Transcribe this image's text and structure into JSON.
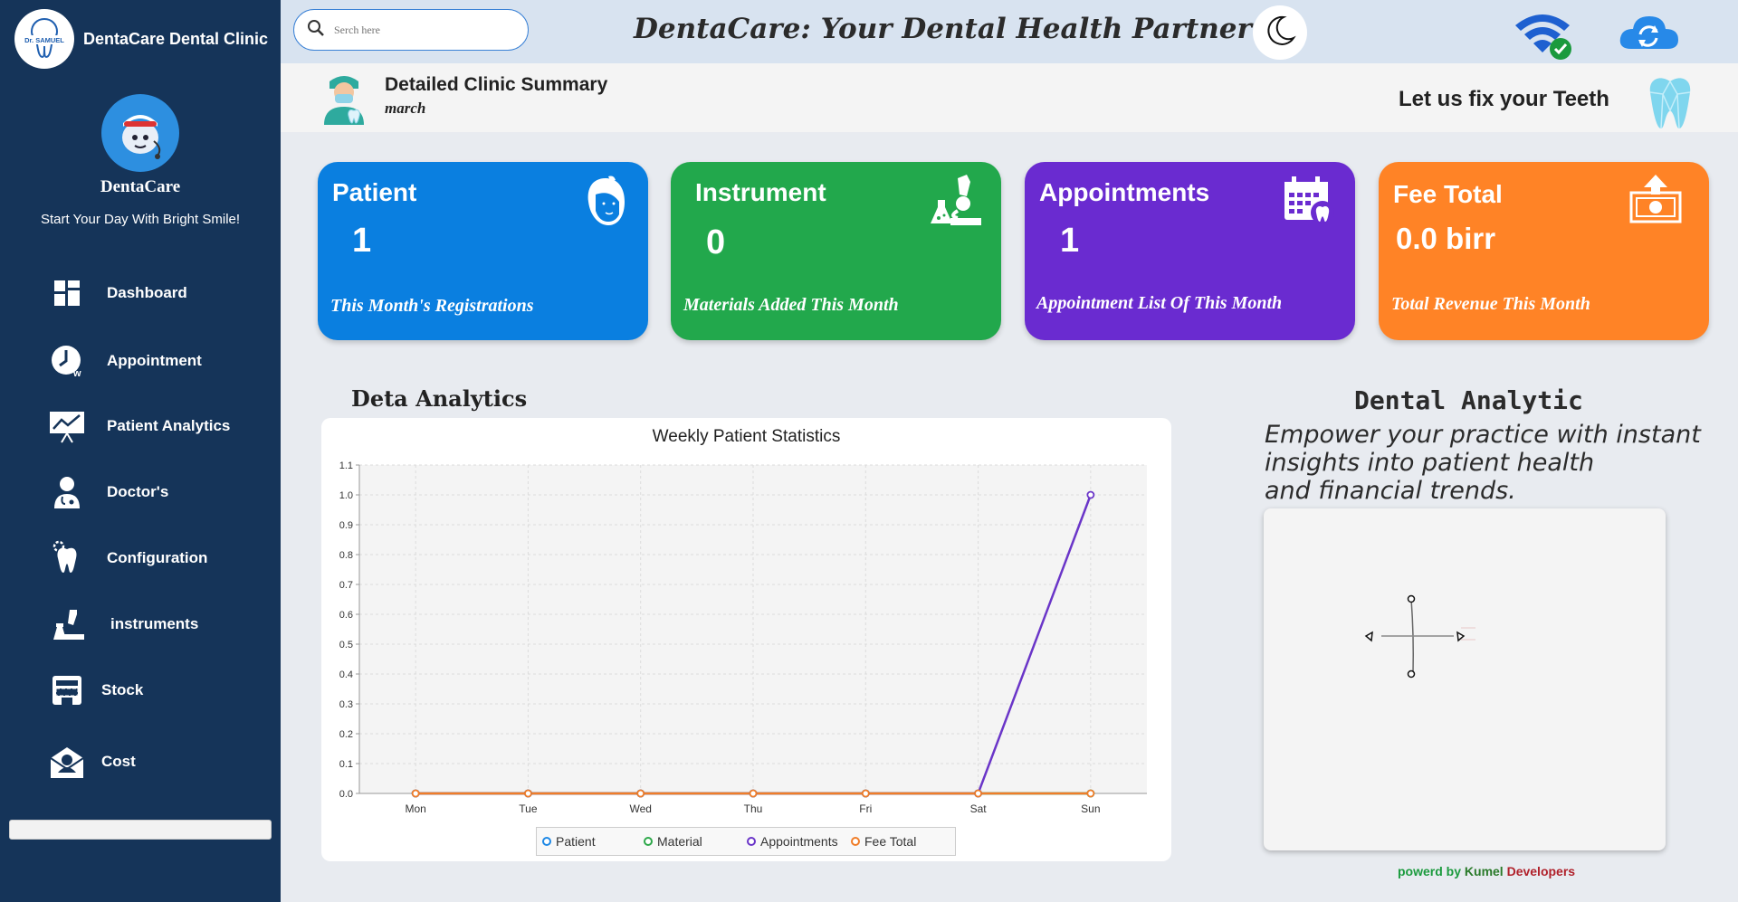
{
  "brand": {
    "title": "DentaCare Dental Clinic",
    "logo_text": "Dr. SAMUEL"
  },
  "sidebar": {
    "profile_name": "DentaCare",
    "tagline": "Start Your Day With Bright Smile!",
    "items": [
      {
        "label": "Dashboard",
        "icon": "dashboard-icon"
      },
      {
        "label": "Appointment",
        "icon": "clock-icon"
      },
      {
        "label": "Patient Analytics",
        "icon": "chart-board-icon"
      },
      {
        "label": "Doctor's",
        "icon": "doctor-icon"
      },
      {
        "label": "Configuration",
        "icon": "tooth-gear-icon"
      },
      {
        "label": "instruments",
        "icon": "microscope-icon"
      },
      {
        "label": "Stock",
        "icon": "store-icon"
      },
      {
        "label": "Cost",
        "icon": "envelope-person-icon"
      }
    ]
  },
  "topbar": {
    "search_placeholder": "Serch here",
    "heading": "DentaCare: Your Dental Health Partner"
  },
  "summary": {
    "title": "Detailed Clinic  Summary",
    "month": "march",
    "slogan": "Let us fix your Teeth"
  },
  "cards": [
    {
      "title": "Patient",
      "value": "1",
      "subtitle": "This Month's Registrations",
      "color": "#0a7fe0"
    },
    {
      "title": "Instrument",
      "value": "0",
      "subtitle": "Materials Added This Month",
      "color": "#22a84c"
    },
    {
      "title": "Appointments",
      "value": "1",
      "subtitle": "Appointment List Of This Month",
      "color": "#6a2bd0"
    },
    {
      "title": "Fee Total",
      "value": "0.0 birr",
      "subtitle": "Total Revenue This Month",
      "color": "#ff8326"
    }
  ],
  "analytics": {
    "heading": "Deta Analytics",
    "dental_title": "Dental Analytic",
    "dental_desc_lines": [
      "Empower your practice with instant",
      "insights into patient health",
      "and financial trends."
    ],
    "credit_1": "powerd by ",
    "credit_2": "Kumel",
    "credit_3": " Developers"
  },
  "chart_data": {
    "type": "line",
    "title": "Weekly Patient Statistics",
    "categories": [
      "Mon",
      "Tue",
      "Wed",
      "Thu",
      "Fri",
      "Sat",
      "Sun"
    ],
    "ylim": [
      0,
      1.1
    ],
    "yticks": [
      "0.0",
      "0.1",
      "0.2",
      "0.3",
      "0.4",
      "0.5",
      "0.6",
      "0.7",
      "0.8",
      "0.9",
      "1.0",
      "1.1"
    ],
    "grid": true,
    "legend_position": "bottom",
    "series": [
      {
        "name": "Patient",
        "color": "#1e88e5",
        "values": [
          0,
          0,
          0,
          0,
          0,
          0,
          0
        ]
      },
      {
        "name": "Material",
        "color": "#2ea84a",
        "values": [
          0,
          0,
          0,
          0,
          0,
          0,
          0
        ]
      },
      {
        "name": "Appointments",
        "color": "#6a35c8",
        "values": [
          0,
          0,
          0,
          0,
          0,
          0,
          1
        ]
      },
      {
        "name": "Fee Total",
        "color": "#f07d28",
        "values": [
          0,
          0,
          0,
          0,
          0,
          0,
          0
        ]
      }
    ]
  }
}
